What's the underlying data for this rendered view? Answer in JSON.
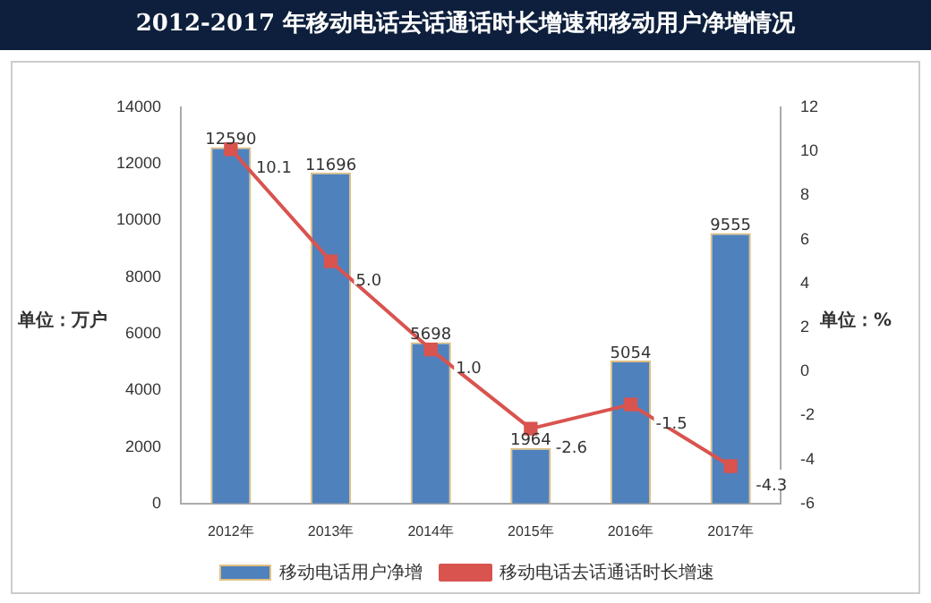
{
  "chart_data": {
    "type": "bar",
    "title": "2012-2017 年移动电话去话通话时长增速和移动用户净增情况",
    "ylabel": "单位：万户",
    "y2label": "单位：%",
    "categories": [
      "2012年",
      "2013年",
      "2014年",
      "2015年",
      "2016年",
      "2017年"
    ],
    "series": [
      {
        "name": "移动电话用户净增",
        "color": "#4f81bd",
        "values": [
          12590,
          11696,
          5698,
          1964,
          5054,
          9555
        ]
      },
      {
        "name": "移动电话去话通话时长增速",
        "type": "line",
        "axis": "y2",
        "color": "#d9534f",
        "values": [
          10.1,
          5.0,
          1.0,
          -2.6,
          -1.5,
          -4.3
        ],
        "value_labels": [
          "10.1",
          "5.0",
          "1.0",
          "-2.6",
          "-1.5",
          "-4.3"
        ]
      }
    ],
    "ylim": [
      0,
      14000
    ],
    "yticks": [
      0,
      2000,
      4000,
      6000,
      8000,
      10000,
      12000,
      14000
    ],
    "y2lim": [
      -6,
      12
    ],
    "y2ticks": [
      -6,
      -4,
      -2,
      0,
      2,
      4,
      6,
      8,
      10,
      12
    ],
    "data_labels": true,
    "legend": "bottom",
    "marker": "square",
    "grid": false
  }
}
